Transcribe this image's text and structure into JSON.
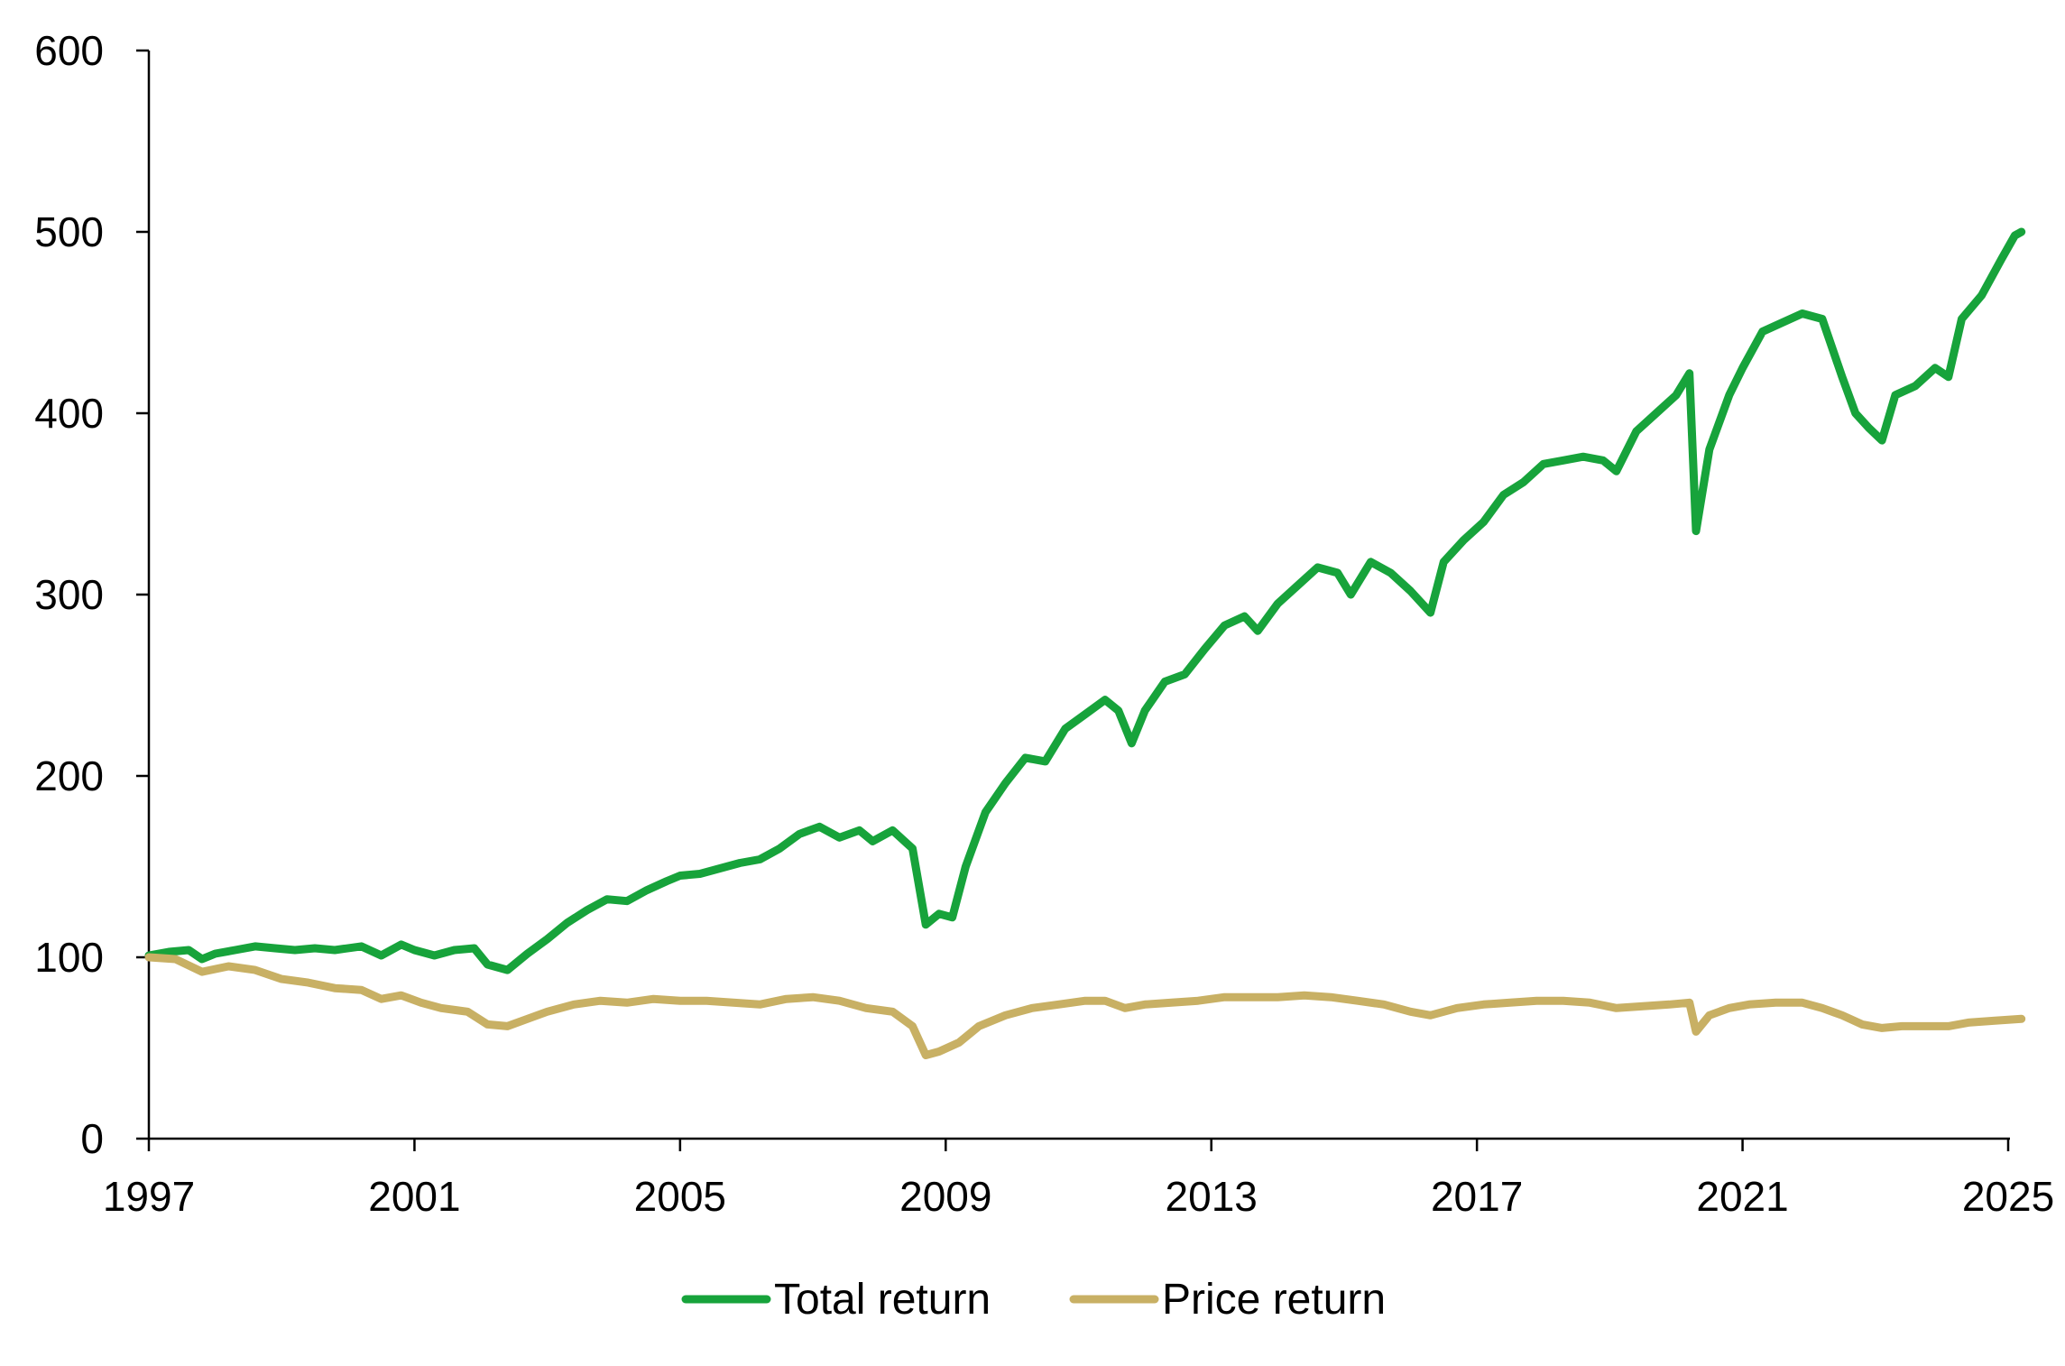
{
  "chart_data": {
    "type": "line",
    "title": "",
    "xlabel": "",
    "ylabel": "",
    "xlim": [
      1997,
      2025.2
    ],
    "ylim": [
      0,
      600
    ],
    "x_ticks": [
      1997,
      2001,
      2005,
      2009,
      2013,
      2017,
      2021,
      2025
    ],
    "x_tick_labels": [
      "1997",
      "2001",
      "2005",
      "2009",
      "2013",
      "2017",
      "2021",
      "2025"
    ],
    "y_ticks": [
      0,
      100,
      200,
      300,
      400,
      500,
      600
    ],
    "y_tick_labels": [
      "0",
      "100",
      "200",
      "300",
      "400",
      "500",
      "600"
    ],
    "grid": false,
    "legend_position": "bottom-center",
    "series": [
      {
        "name": "Total return",
        "color": "#17a33b",
        "points": [
          [
            1997.0,
            101
          ],
          [
            1997.3,
            103
          ],
          [
            1997.6,
            104
          ],
          [
            1997.8,
            99
          ],
          [
            1998.0,
            102
          ],
          [
            1998.3,
            104
          ],
          [
            1998.6,
            106
          ],
          [
            1998.9,
            105
          ],
          [
            1999.2,
            104
          ],
          [
            1999.5,
            105
          ],
          [
            1999.8,
            104
          ],
          [
            2000.2,
            106
          ],
          [
            2000.5,
            101
          ],
          [
            2000.8,
            107
          ],
          [
            2001.0,
            104
          ],
          [
            2001.3,
            101
          ],
          [
            2001.6,
            104
          ],
          [
            2001.9,
            105
          ],
          [
            2002.1,
            96
          ],
          [
            2002.4,
            93
          ],
          [
            2002.7,
            102
          ],
          [
            2003.0,
            110
          ],
          [
            2003.3,
            119
          ],
          [
            2003.6,
            126
          ],
          [
            2003.9,
            132
          ],
          [
            2004.2,
            131
          ],
          [
            2004.5,
            137
          ],
          [
            2004.8,
            142
          ],
          [
            2005.0,
            145
          ],
          [
            2005.3,
            146
          ],
          [
            2005.6,
            149
          ],
          [
            2005.9,
            152
          ],
          [
            2006.2,
            154
          ],
          [
            2006.5,
            160
          ],
          [
            2006.8,
            168
          ],
          [
            2007.1,
            172
          ],
          [
            2007.4,
            166
          ],
          [
            2007.7,
            170
          ],
          [
            2007.9,
            164
          ],
          [
            2008.2,
            170
          ],
          [
            2008.5,
            160
          ],
          [
            2008.7,
            118
          ],
          [
            2008.9,
            124
          ],
          [
            2009.1,
            122
          ],
          [
            2009.3,
            150
          ],
          [
            2009.6,
            180
          ],
          [
            2009.9,
            196
          ],
          [
            2010.2,
            210
          ],
          [
            2010.5,
            208
          ],
          [
            2010.8,
            226
          ],
          [
            2011.1,
            234
          ],
          [
            2011.4,
            242
          ],
          [
            2011.6,
            236
          ],
          [
            2011.8,
            218
          ],
          [
            2012.0,
            236
          ],
          [
            2012.3,
            252
          ],
          [
            2012.6,
            256
          ],
          [
            2012.9,
            270
          ],
          [
            2013.2,
            283
          ],
          [
            2013.5,
            288
          ],
          [
            2013.7,
            280
          ],
          [
            2014.0,
            295
          ],
          [
            2014.3,
            305
          ],
          [
            2014.6,
            315
          ],
          [
            2014.9,
            312
          ],
          [
            2015.1,
            300
          ],
          [
            2015.4,
            318
          ],
          [
            2015.7,
            312
          ],
          [
            2016.0,
            302
          ],
          [
            2016.3,
            290
          ],
          [
            2016.5,
            318
          ],
          [
            2016.8,
            330
          ],
          [
            2017.1,
            340
          ],
          [
            2017.4,
            355
          ],
          [
            2017.7,
            362
          ],
          [
            2018.0,
            372
          ],
          [
            2018.3,
            374
          ],
          [
            2018.6,
            376
          ],
          [
            2018.9,
            374
          ],
          [
            2019.1,
            368
          ],
          [
            2019.4,
            390
          ],
          [
            2019.7,
            400
          ],
          [
            2020.0,
            410
          ],
          [
            2020.2,
            422
          ],
          [
            2020.3,
            335
          ],
          [
            2020.5,
            380
          ],
          [
            2020.8,
            410
          ],
          [
            2021.0,
            425
          ],
          [
            2021.3,
            445
          ],
          [
            2021.6,
            450
          ],
          [
            2021.9,
            455
          ],
          [
            2022.2,
            452
          ],
          [
            2022.5,
            420
          ],
          [
            2022.7,
            400
          ],
          [
            2022.9,
            392
          ],
          [
            2023.1,
            385
          ],
          [
            2023.3,
            410
          ],
          [
            2023.6,
            415
          ],
          [
            2023.9,
            425
          ],
          [
            2024.1,
            420
          ],
          [
            2024.3,
            452
          ],
          [
            2024.6,
            465
          ],
          [
            2024.9,
            485
          ],
          [
            2025.1,
            498
          ],
          [
            2025.2,
            500
          ]
        ]
      },
      {
        "name": "Price return",
        "color": "#c8b064",
        "points": [
          [
            1997.0,
            100
          ],
          [
            1997.4,
            99
          ],
          [
            1997.8,
            92
          ],
          [
            1998.2,
            95
          ],
          [
            1998.6,
            93
          ],
          [
            1999.0,
            88
          ],
          [
            1999.4,
            86
          ],
          [
            1999.8,
            83
          ],
          [
            2000.2,
            82
          ],
          [
            2000.5,
            77
          ],
          [
            2000.8,
            79
          ],
          [
            2001.1,
            75
          ],
          [
            2001.4,
            72
          ],
          [
            2001.8,
            70
          ],
          [
            2002.1,
            63
          ],
          [
            2002.4,
            62
          ],
          [
            2002.7,
            66
          ],
          [
            2003.0,
            70
          ],
          [
            2003.4,
            74
          ],
          [
            2003.8,
            76
          ],
          [
            2004.2,
            75
          ],
          [
            2004.6,
            77
          ],
          [
            2005.0,
            76
          ],
          [
            2005.4,
            76
          ],
          [
            2005.8,
            75
          ],
          [
            2006.2,
            74
          ],
          [
            2006.6,
            77
          ],
          [
            2007.0,
            78
          ],
          [
            2007.4,
            76
          ],
          [
            2007.8,
            72
          ],
          [
            2008.2,
            70
          ],
          [
            2008.5,
            62
          ],
          [
            2008.7,
            46
          ],
          [
            2008.9,
            48
          ],
          [
            2009.2,
            53
          ],
          [
            2009.5,
            62
          ],
          [
            2009.9,
            68
          ],
          [
            2010.3,
            72
          ],
          [
            2010.7,
            74
          ],
          [
            2011.1,
            76
          ],
          [
            2011.4,
            76
          ],
          [
            2011.7,
            72
          ],
          [
            2012.0,
            74
          ],
          [
            2012.4,
            75
          ],
          [
            2012.8,
            76
          ],
          [
            2013.2,
            78
          ],
          [
            2013.6,
            78
          ],
          [
            2014.0,
            78
          ],
          [
            2014.4,
            79
          ],
          [
            2014.8,
            78
          ],
          [
            2015.2,
            76
          ],
          [
            2015.6,
            74
          ],
          [
            2016.0,
            70
          ],
          [
            2016.3,
            68
          ],
          [
            2016.7,
            72
          ],
          [
            2017.1,
            74
          ],
          [
            2017.5,
            75
          ],
          [
            2017.9,
            76
          ],
          [
            2018.3,
            76
          ],
          [
            2018.7,
            75
          ],
          [
            2019.1,
            72
          ],
          [
            2019.5,
            73
          ],
          [
            2019.9,
            74
          ],
          [
            2020.2,
            75
          ],
          [
            2020.3,
            59
          ],
          [
            2020.5,
            68
          ],
          [
            2020.8,
            72
          ],
          [
            2021.1,
            74
          ],
          [
            2021.5,
            75
          ],
          [
            2021.9,
            75
          ],
          [
            2022.2,
            72
          ],
          [
            2022.5,
            68
          ],
          [
            2022.8,
            63
          ],
          [
            2023.1,
            61
          ],
          [
            2023.4,
            62
          ],
          [
            2023.8,
            62
          ],
          [
            2024.1,
            62
          ],
          [
            2024.4,
            64
          ],
          [
            2024.8,
            65
          ],
          [
            2025.2,
            66
          ]
        ]
      }
    ]
  }
}
